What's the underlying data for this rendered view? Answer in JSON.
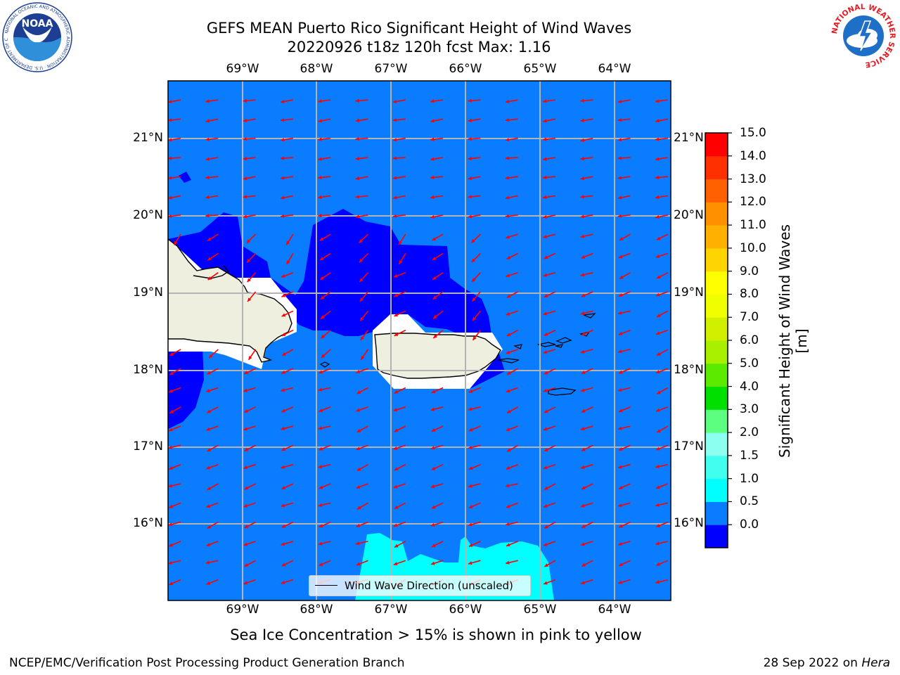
{
  "title_line1": "GEFS MEAN Puerto Rico Significant Height of Wind Waves",
  "title_line2": "20220926 t18z 120h fcst   Max: 1.16",
  "lon_labels": [
    "69°W",
    "68°W",
    "67°W",
    "66°W",
    "65°W",
    "64°W"
  ],
  "lat_labels": [
    "21°N",
    "20°N",
    "19°N",
    "18°N",
    "17°N",
    "16°N"
  ],
  "legend_label": "Wind Wave Direction (unscaled)",
  "colorbar": {
    "label": "Significant Height of Wind Waves [m]",
    "ticks": [
      "15.0",
      "14.0",
      "13.0",
      "12.0",
      "11.0",
      "10.0",
      "9.0",
      "8.0",
      "7.0",
      "6.0",
      "5.0",
      "4.0",
      "3.0",
      "2.0",
      "1.5",
      "1.0",
      "0.5",
      "0.0"
    ],
    "colors_bottom_to_top": [
      "#0000ff",
      "#0a7cff",
      "#00ffff",
      "#40ffee",
      "#8cfff0",
      "#5cff7f",
      "#00e000",
      "#5cea00",
      "#a8f000",
      "#d0f000",
      "#f0ff00",
      "#ffff00",
      "#ffd500",
      "#ffb000",
      "#ff9000",
      "#ff6000",
      "#ff3000",
      "#ff0000"
    ]
  },
  "colors": {
    "ocean_light": "#0a7cff",
    "ocean_deep": "#0000ff",
    "cyan": "#00ffff",
    "land": "#efefdf",
    "arrow": "#ff0000",
    "grid": "#b4b4b4"
  },
  "note": "Sea Ice Concentration > 15% is shown in pink to yellow",
  "footer_left": "NCEP/EMC/Verification Post Processing Product Generation Branch",
  "footer_right_prefix": "28 Sep 2022 on ",
  "footer_right_italic": "Hera",
  "noaa_logo_text": "NOAA",
  "noaa_ring_text": "NATIONAL OCEANIC AND ATMOSPHERIC ADMINISTRATION · U.S. DEPARTMENT OF COMMERCE",
  "nws_ring_text": "NATIONAL WEATHER SERVICE"
}
